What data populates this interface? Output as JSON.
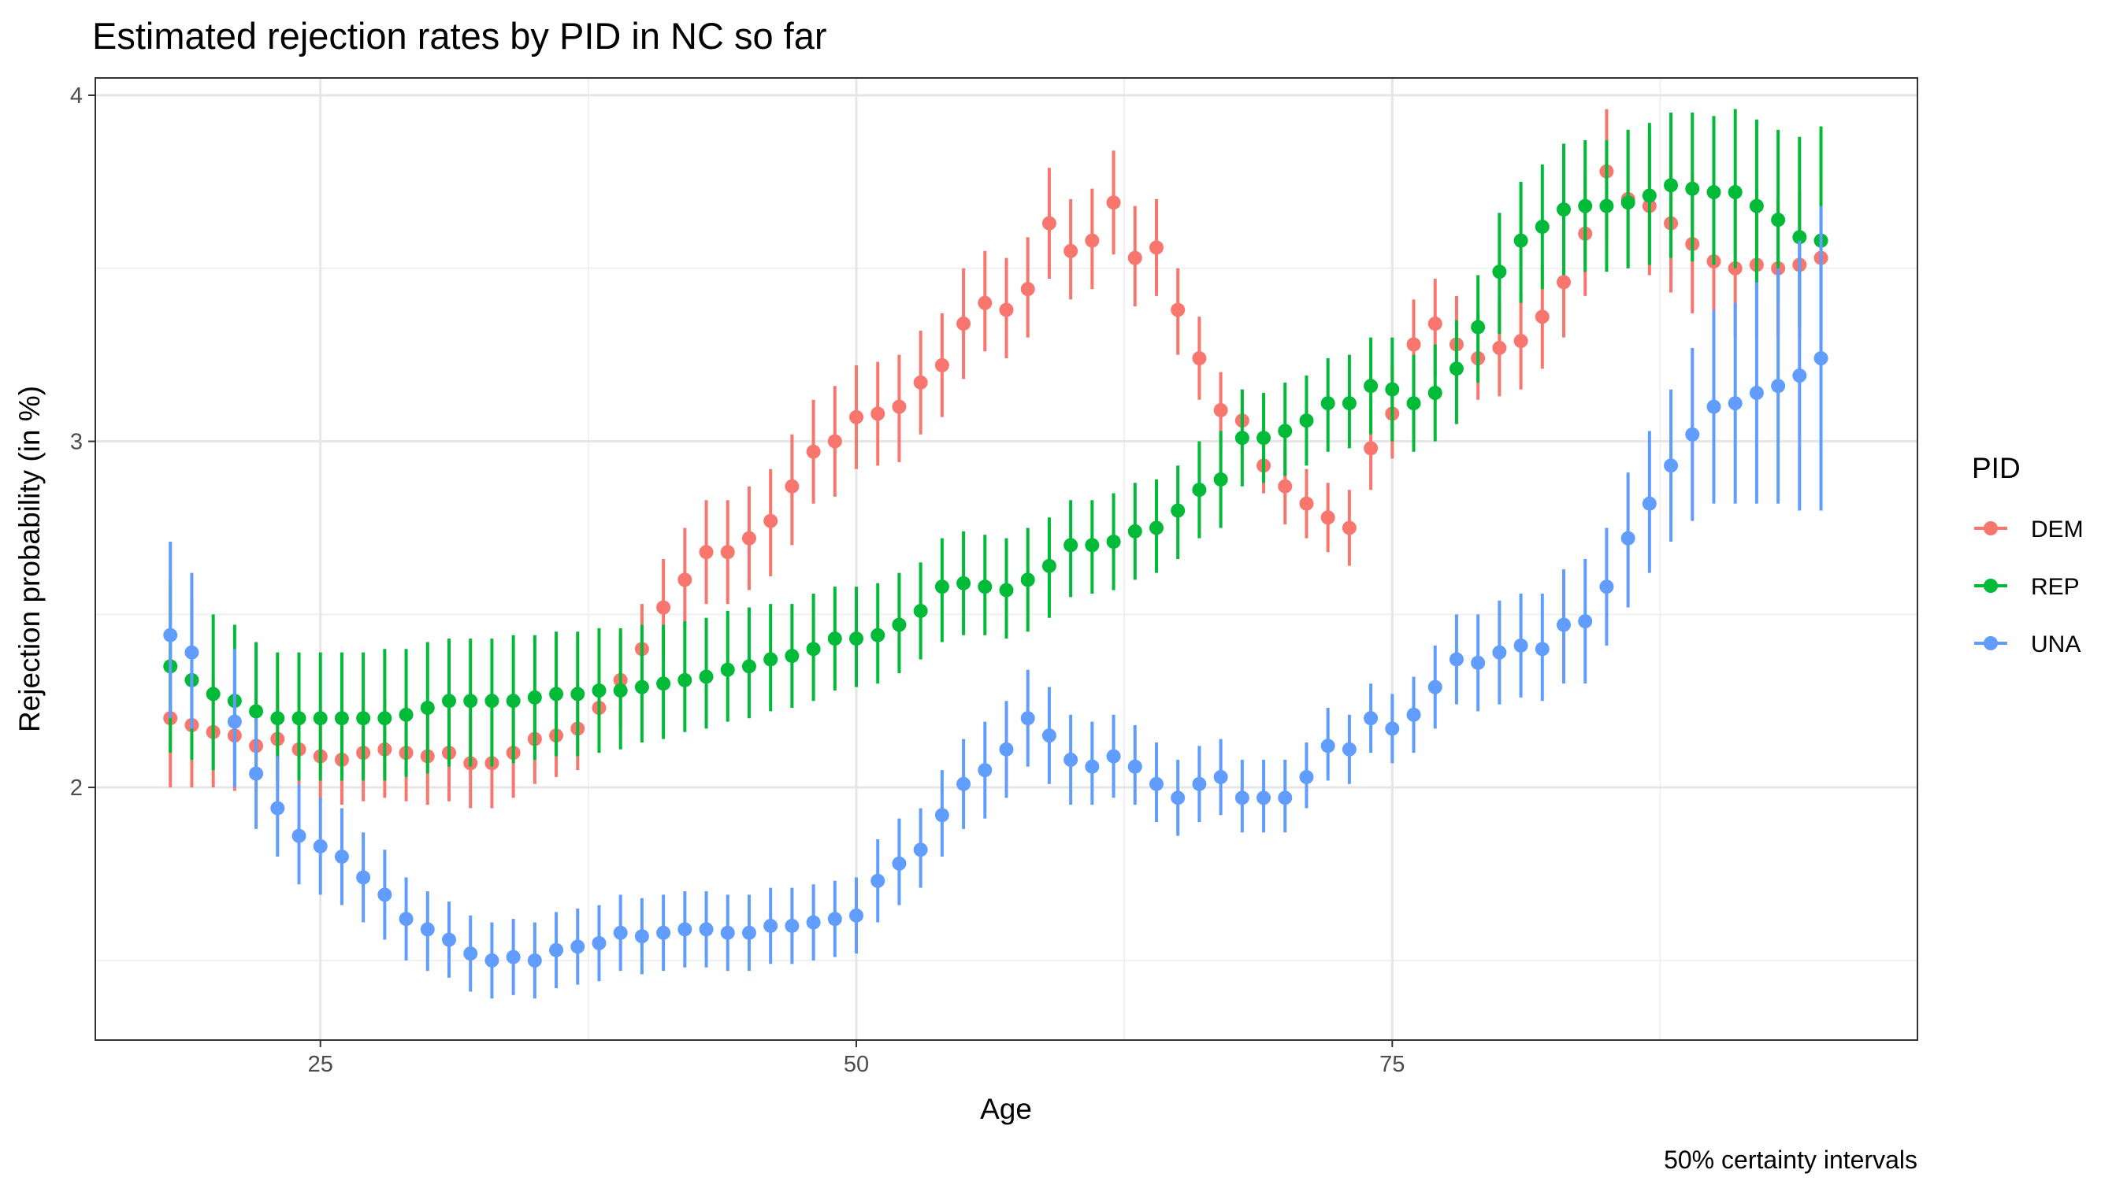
{
  "chart_data": {
    "type": "scatter",
    "title": "Estimated rejection rates by PID in NC so far",
    "xlabel": "Age",
    "ylabel": "Rejection probability (in %)",
    "caption": "50% certainty intervals",
    "legend_title": "PID",
    "legend_position": "right",
    "xlim": [
      14.5,
      99.5
    ],
    "ylim": [
      1.27,
      4.05
    ],
    "x_ticks": [
      25,
      50,
      75
    ],
    "x_tick_labels": [
      "25",
      "50",
      "75"
    ],
    "y_ticks": [
      2,
      3,
      4
    ],
    "y_tick_labels": [
      "2",
      "3",
      "4"
    ],
    "grid": true,
    "x_start": 18,
    "series": [
      {
        "name": "DEM",
        "color": "#F8766D",
        "y": [
          2.2,
          2.18,
          2.16,
          2.15,
          2.12,
          2.14,
          2.11,
          2.09,
          2.08,
          2.1,
          2.11,
          2.1,
          2.09,
          2.1,
          2.07,
          2.07,
          2.1,
          2.14,
          2.15,
          2.17,
          2.23,
          2.31,
          2.4,
          2.52,
          2.6,
          2.68,
          2.68,
          2.72,
          2.77,
          2.87,
          2.97,
          3.0,
          3.07,
          3.08,
          3.1,
          3.17,
          3.22,
          3.34,
          3.4,
          3.38,
          3.44,
          3.63,
          3.55,
          3.58,
          3.69,
          3.53,
          3.56,
          3.38,
          3.24,
          3.09,
          3.06,
          2.93,
          2.87,
          2.82,
          2.78,
          2.75,
          2.98,
          3.08,
          3.28,
          3.34,
          3.28,
          3.24,
          3.27,
          3.29,
          3.36,
          3.46,
          3.6,
          3.78,
          3.7,
          3.68,
          3.63,
          3.57,
          3.52,
          3.5,
          3.51,
          3.5,
          3.51,
          3.53
        ],
        "lower": [
          2.0,
          2.0,
          2.0,
          1.99,
          1.99,
          2.0,
          1.97,
          1.96,
          1.95,
          1.96,
          1.97,
          1.96,
          1.95,
          1.96,
          1.94,
          1.94,
          1.97,
          2.01,
          2.03,
          2.05,
          2.1,
          2.17,
          2.27,
          2.38,
          2.46,
          2.53,
          2.53,
          2.57,
          2.61,
          2.7,
          2.82,
          2.84,
          2.92,
          2.93,
          2.94,
          3.02,
          3.07,
          3.18,
          3.26,
          3.24,
          3.3,
          3.47,
          3.41,
          3.44,
          3.54,
          3.39,
          3.42,
          3.25,
          3.12,
          2.98,
          2.98,
          2.85,
          2.76,
          2.72,
          2.68,
          2.64,
          2.86,
          2.95,
          3.12,
          3.19,
          3.15,
          3.12,
          3.13,
          3.15,
          3.21,
          3.3,
          3.42,
          3.58,
          3.5,
          3.48,
          3.43,
          3.37,
          3.32,
          3.3,
          3.3,
          3.3,
          3.3,
          3.3
        ],
        "upper": [
          2.4,
          2.36,
          2.32,
          2.31,
          2.26,
          2.28,
          2.25,
          2.22,
          2.21,
          2.24,
          2.25,
          2.24,
          2.23,
          2.24,
          2.21,
          2.21,
          2.23,
          2.27,
          2.28,
          2.3,
          2.36,
          2.45,
          2.53,
          2.66,
          2.75,
          2.83,
          2.83,
          2.87,
          2.92,
          3.02,
          3.12,
          3.16,
          3.22,
          3.23,
          3.25,
          3.32,
          3.37,
          3.5,
          3.55,
          3.53,
          3.59,
          3.79,
          3.7,
          3.73,
          3.84,
          3.68,
          3.7,
          3.5,
          3.36,
          3.2,
          3.15,
          3.02,
          2.98,
          2.92,
          2.88,
          2.86,
          3.1,
          3.22,
          3.41,
          3.47,
          3.42,
          3.37,
          3.41,
          3.43,
          3.51,
          3.62,
          3.78,
          3.96,
          3.9,
          3.88,
          3.83,
          3.77,
          3.72,
          3.7,
          3.72,
          3.7,
          3.72,
          3.76
        ]
      },
      {
        "name": "REP",
        "color": "#00BA38",
        "y": [
          2.35,
          2.31,
          2.27,
          2.25,
          2.22,
          2.2,
          2.2,
          2.2,
          2.2,
          2.2,
          2.2,
          2.21,
          2.23,
          2.25,
          2.25,
          2.25,
          2.25,
          2.26,
          2.27,
          2.27,
          2.28,
          2.28,
          2.29,
          2.3,
          2.31,
          2.32,
          2.34,
          2.35,
          2.37,
          2.38,
          2.4,
          2.43,
          2.43,
          2.44,
          2.47,
          2.51,
          2.58,
          2.59,
          2.58,
          2.57,
          2.6,
          2.64,
          2.7,
          2.7,
          2.71,
          2.74,
          2.75,
          2.8,
          2.86,
          2.89,
          3.01,
          3.01,
          3.03,
          3.06,
          3.11,
          3.11,
          3.16,
          3.15,
          3.11,
          3.14,
          3.21,
          3.33,
          3.49,
          3.58,
          3.62,
          3.67,
          3.68,
          3.68,
          3.69,
          3.71,
          3.74,
          3.73,
          3.72,
          3.72,
          3.68,
          3.64,
          3.59,
          3.58
        ],
        "lower": [
          2.1,
          2.08,
          2.05,
          2.04,
          2.03,
          2.02,
          2.02,
          2.02,
          2.02,
          2.02,
          2.02,
          2.03,
          2.04,
          2.06,
          2.06,
          2.06,
          2.07,
          2.08,
          2.09,
          2.09,
          2.1,
          2.11,
          2.13,
          2.14,
          2.16,
          2.17,
          2.19,
          2.2,
          2.22,
          2.23,
          2.25,
          2.28,
          2.29,
          2.3,
          2.33,
          2.37,
          2.42,
          2.44,
          2.44,
          2.43,
          2.45,
          2.49,
          2.55,
          2.56,
          2.57,
          2.6,
          2.62,
          2.66,
          2.72,
          2.75,
          2.87,
          2.88,
          2.9,
          2.93,
          2.97,
          2.98,
          3.02,
          3.0,
          2.97,
          3.0,
          3.05,
          3.17,
          3.31,
          3.4,
          3.44,
          3.48,
          3.49,
          3.49,
          3.5,
          3.51,
          3.53,
          3.52,
          3.51,
          3.5,
          3.44,
          3.4,
          3.33,
          3.26
        ],
        "upper": [
          2.6,
          2.55,
          2.5,
          2.47,
          2.42,
          2.39,
          2.39,
          2.39,
          2.39,
          2.39,
          2.4,
          2.4,
          2.42,
          2.43,
          2.43,
          2.43,
          2.44,
          2.44,
          2.45,
          2.45,
          2.46,
          2.46,
          2.47,
          2.47,
          2.48,
          2.49,
          2.51,
          2.52,
          2.53,
          2.53,
          2.56,
          2.58,
          2.58,
          2.59,
          2.62,
          2.65,
          2.72,
          2.74,
          2.73,
          2.72,
          2.75,
          2.78,
          2.83,
          2.83,
          2.85,
          2.88,
          2.89,
          2.93,
          3.0,
          3.03,
          3.15,
          3.14,
          3.17,
          3.19,
          3.24,
          3.25,
          3.3,
          3.3,
          3.25,
          3.28,
          3.35,
          3.48,
          3.66,
          3.75,
          3.8,
          3.86,
          3.87,
          3.87,
          3.9,
          3.92,
          3.95,
          3.95,
          3.94,
          3.96,
          3.93,
          3.9,
          3.88,
          3.91
        ]
      },
      {
        "name": "UNA",
        "color": "#619CFF",
        "y": [
          2.44,
          2.39,
          null,
          2.19,
          2.04,
          1.94,
          1.86,
          1.83,
          1.8,
          1.74,
          1.69,
          1.62,
          1.59,
          1.56,
          1.52,
          1.5,
          1.51,
          1.5,
          1.53,
          1.54,
          1.55,
          1.58,
          1.57,
          1.58,
          1.59,
          1.59,
          1.58,
          1.58,
          1.6,
          1.6,
          1.61,
          1.62,
          1.63,
          1.73,
          1.78,
          1.82,
          1.92,
          2.01,
          2.05,
          2.11,
          2.2,
          2.15,
          2.08,
          2.06,
          2.09,
          2.06,
          2.01,
          1.97,
          2.01,
          2.03,
          1.97,
          1.97,
          1.97,
          2.03,
          2.12,
          2.11,
          2.2,
          2.17,
          2.21,
          2.29,
          2.37,
          2.36,
          2.39,
          2.41,
          2.4,
          2.47,
          2.48,
          2.58,
          2.72,
          2.82,
          2.93,
          3.02,
          3.1,
          3.11,
          3.14,
          3.16,
          3.19,
          3.24
        ],
        "lower": [
          2.2,
          2.17,
          null,
          2.0,
          1.88,
          1.8,
          1.72,
          1.69,
          1.66,
          1.61,
          1.56,
          1.5,
          1.47,
          1.45,
          1.41,
          1.39,
          1.4,
          1.39,
          1.42,
          1.43,
          1.44,
          1.47,
          1.46,
          1.47,
          1.48,
          1.48,
          1.47,
          1.47,
          1.49,
          1.49,
          1.5,
          1.51,
          1.52,
          1.61,
          1.66,
          1.71,
          1.8,
          1.88,
          1.91,
          1.97,
          2.06,
          2.01,
          1.95,
          1.95,
          1.97,
          1.95,
          1.9,
          1.86,
          1.9,
          1.92,
          1.87,
          1.87,
          1.87,
          1.94,
          2.02,
          2.01,
          2.1,
          2.07,
          2.1,
          2.17,
          2.24,
          2.22,
          2.24,
          2.26,
          2.25,
          2.3,
          2.3,
          2.41,
          2.52,
          2.62,
          2.71,
          2.77,
          2.82,
          2.82,
          2.82,
          2.82,
          2.8,
          2.8
        ],
        "upper": [
          2.71,
          2.62,
          null,
          2.4,
          2.2,
          2.09,
          2.01,
          1.97,
          1.94,
          1.87,
          1.82,
          1.74,
          1.7,
          1.67,
          1.63,
          1.61,
          1.62,
          1.61,
          1.64,
          1.65,
          1.66,
          1.69,
          1.68,
          1.69,
          1.7,
          1.7,
          1.69,
          1.69,
          1.71,
          1.71,
          1.72,
          1.73,
          1.74,
          1.85,
          1.91,
          1.94,
          2.05,
          2.14,
          2.19,
          2.25,
          2.34,
          2.29,
          2.21,
          2.19,
          2.21,
          2.18,
          2.13,
          2.08,
          2.12,
          2.14,
          2.08,
          2.08,
          2.08,
          2.13,
          2.23,
          2.21,
          2.3,
          2.27,
          2.32,
          2.41,
          2.5,
          2.5,
          2.54,
          2.56,
          2.56,
          2.63,
          2.66,
          2.75,
          2.91,
          3.03,
          3.15,
          3.27,
          3.38,
          3.4,
          3.46,
          3.5,
          3.58,
          3.68
        ]
      }
    ]
  }
}
